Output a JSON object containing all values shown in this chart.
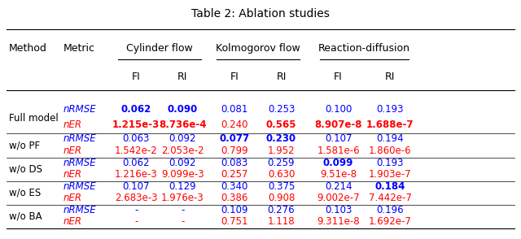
{
  "title": "Table 2: Ablation studies",
  "col_headers_top": [
    "Method",
    "Metric",
    "Cylinder flow",
    "",
    "Kolmogorov flow",
    "",
    "Reaction-diffusion",
    ""
  ],
  "col_headers_sub": [
    "",
    "",
    "FI",
    "RI",
    "FI",
    "RI",
    "FI",
    "RI"
  ],
  "rows": [
    {
      "method": "Full model",
      "metrics": [
        "nRMSE",
        "nER"
      ],
      "values": [
        [
          "0.062",
          "0.090",
          "0.081",
          "0.253",
          "0.100",
          "0.193"
        ],
        [
          "1.215e-3",
          "8.736e-4",
          "0.240",
          "0.565",
          "8.907e-8",
          "1.688e-7"
        ]
      ],
      "bold": [
        [
          true,
          true,
          false,
          false,
          false,
          false
        ],
        [
          true,
          true,
          false,
          true,
          true,
          true
        ]
      ],
      "metric_colors": [
        "blue",
        "red"
      ]
    },
    {
      "method": "w/o PF",
      "metrics": [
        "nRMSE",
        "nER"
      ],
      "values": [
        [
          "0.063",
          "0.092",
          "0.077",
          "0.230",
          "0.107",
          "0.194"
        ],
        [
          "1.542e-2",
          "2.053e-2",
          "0.799",
          "1.952",
          "1.581e-6",
          "1.860e-6"
        ]
      ],
      "bold": [
        [
          false,
          false,
          true,
          true,
          false,
          false
        ],
        [
          false,
          false,
          false,
          false,
          false,
          false
        ]
      ],
      "metric_colors": [
        "blue",
        "red"
      ]
    },
    {
      "method": "w/o DS",
      "metrics": [
        "nRMSE",
        "nER"
      ],
      "values": [
        [
          "0.062",
          "0.092",
          "0.083",
          "0.259",
          "0.099",
          "0.193"
        ],
        [
          "1.216e-3",
          "9.099e-3",
          "0.257",
          "0.630",
          "9.51e-8",
          "1.903e-7"
        ]
      ],
      "bold": [
        [
          false,
          false,
          false,
          false,
          true,
          false
        ],
        [
          false,
          false,
          false,
          false,
          false,
          false
        ]
      ],
      "metric_colors": [
        "blue",
        "red"
      ]
    },
    {
      "method": "w/o ES",
      "metrics": [
        "nRMSE",
        "nER"
      ],
      "values": [
        [
          "0.107",
          "0.129",
          "0.340",
          "0.375",
          "0.214",
          "0.184"
        ],
        [
          "2.683e-3",
          "1.976e-3",
          "0.386",
          "0.908",
          "9.002e-7",
          "7.442e-7"
        ]
      ],
      "bold": [
        [
          false,
          false,
          false,
          false,
          false,
          true
        ],
        [
          false,
          false,
          false,
          false,
          false,
          false
        ]
      ],
      "metric_colors": [
        "blue",
        "red"
      ]
    },
    {
      "method": "w/o BA",
      "metrics": [
        "nRMSE",
        "nER"
      ],
      "values": [
        [
          "-",
          "-",
          "0.109",
          "0.276",
          "0.103",
          "0.196"
        ],
        [
          "-",
          "-",
          "0.751",
          "1.118",
          "9.311e-8",
          "1.692e-7"
        ]
      ],
      "bold": [
        [
          false,
          false,
          false,
          false,
          false,
          false
        ],
        [
          false,
          false,
          false,
          false,
          false,
          false
        ]
      ],
      "metric_colors": [
        "blue",
        "red"
      ]
    }
  ],
  "blue_color": "#0000FF",
  "red_color": "#FF0000",
  "black_color": "#000000",
  "bg_color": "#FFFFFF",
  "title_fontsize": 10,
  "header_fontsize": 9,
  "cell_fontsize": 8.5
}
